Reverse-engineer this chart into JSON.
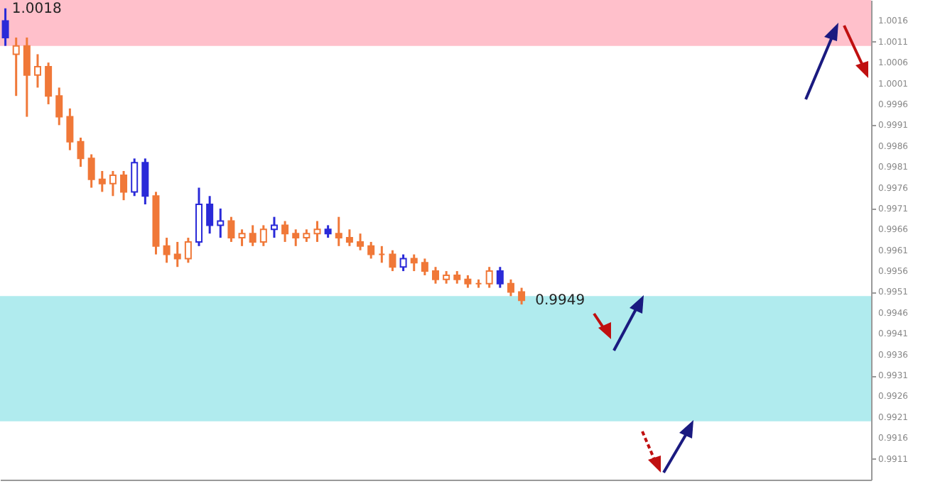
{
  "chart_data": {
    "type": "candlestick",
    "categories": [
      null,
      null,
      null,
      null,
      null,
      null,
      null,
      null,
      null,
      null,
      null,
      null,
      null,
      null,
      null,
      null,
      null,
      null,
      null,
      null,
      null,
      null,
      null,
      null,
      null,
      null,
      null,
      null,
      null,
      null,
      null,
      null,
      null,
      null,
      null,
      null,
      null,
      null,
      null,
      null,
      null,
      null,
      null,
      null,
      null,
      null,
      null,
      null,
      null,
      null,
      null,
      null,
      null,
      null,
      null,
      null,
      null,
      null,
      null,
      null,
      null,
      null,
      null,
      null,
      null,
      null,
      null,
      null,
      null,
      null,
      null,
      null,
      null,
      null,
      null,
      null,
      null,
      null,
      null,
      null,
      null
    ],
    "ohlc": [
      [
        1.0016,
        1.0019,
        1.001,
        1.0012
      ],
      [
        1.0008,
        1.0012,
        0.9998,
        1.001
      ],
      [
        1.001,
        1.0012,
        0.9993,
        1.0003
      ],
      [
        1.0003,
        1.0008,
        1.0,
        1.0005
      ],
      [
        1.0005,
        1.0006,
        0.9996,
        0.9998
      ],
      [
        0.9998,
        1.0,
        0.9991,
        0.9993
      ],
      [
        0.9993,
        0.9995,
        0.9985,
        0.9987
      ],
      [
        0.9987,
        0.9988,
        0.9981,
        0.9983
      ],
      [
        0.9983,
        0.9984,
        0.9976,
        0.9978
      ],
      [
        0.9978,
        0.998,
        0.9975,
        0.9977
      ],
      [
        0.9977,
        0.998,
        0.9974,
        0.9979
      ],
      [
        0.9979,
        0.998,
        0.9973,
        0.9975
      ],
      [
        0.9975,
        0.9983,
        0.9974,
        0.9982
      ],
      [
        0.9982,
        0.9983,
        0.9972,
        0.9974
      ],
      [
        0.9974,
        0.9975,
        0.996,
        0.9962
      ],
      [
        0.9962,
        0.9964,
        0.9958,
        0.996
      ],
      [
        0.996,
        0.9963,
        0.9957,
        0.9959
      ],
      [
        0.9959,
        0.9964,
        0.9958,
        0.9963
      ],
      [
        0.9963,
        0.9976,
        0.9962,
        0.9972
      ],
      [
        0.9972,
        0.9974,
        0.9965,
        0.9967
      ],
      [
        0.9967,
        0.9971,
        0.9964,
        0.9968
      ],
      [
        0.9968,
        0.9969,
        0.9963,
        0.9964
      ],
      [
        0.9964,
        0.9966,
        0.9962,
        0.9965
      ],
      [
        0.9965,
        0.9967,
        0.9962,
        0.9963
      ],
      [
        0.9963,
        0.9967,
        0.9962,
        0.9966
      ],
      [
        0.9966,
        0.9969,
        0.9964,
        0.9967
      ],
      [
        0.9967,
        0.9968,
        0.9963,
        0.9965
      ],
      [
        0.9965,
        0.9966,
        0.9962,
        0.9964
      ],
      [
        0.9964,
        0.9966,
        0.9963,
        0.9965
      ],
      [
        0.9965,
        0.9968,
        0.9963,
        0.9966
      ],
      [
        0.9966,
        0.9967,
        0.9964,
        0.9965
      ],
      [
        0.9965,
        0.9969,
        0.9962,
        0.9964
      ],
      [
        0.9964,
        0.9966,
        0.9962,
        0.9963
      ],
      [
        0.9963,
        0.9965,
        0.9961,
        0.9962
      ],
      [
        0.9962,
        0.9963,
        0.9959,
        0.996
      ],
      [
        0.996,
        0.9962,
        0.9958,
        0.996
      ],
      [
        0.996,
        0.9961,
        0.9956,
        0.9957
      ],
      [
        0.9957,
        0.996,
        0.9956,
        0.9959
      ],
      [
        0.9959,
        0.996,
        0.9956,
        0.9958
      ],
      [
        0.9958,
        0.9959,
        0.9955,
        0.9956
      ],
      [
        0.9956,
        0.9957,
        0.9953,
        0.9954
      ],
      [
        0.9954,
        0.9956,
        0.9953,
        0.9955
      ],
      [
        0.9955,
        0.9956,
        0.9953,
        0.9954
      ],
      [
        0.9954,
        0.9955,
        0.9952,
        0.9953
      ],
      [
        0.9953,
        0.9954,
        0.9952,
        0.9953
      ],
      [
        0.9953,
        0.9957,
        0.9952,
        0.9956
      ],
      [
        0.9956,
        0.9957,
        0.9952,
        0.9953
      ],
      [
        0.9953,
        0.9954,
        0.995,
        0.9951
      ],
      [
        0.9951,
        0.9952,
        0.9948,
        0.9949
      ],
      null,
      null,
      null,
      null,
      null,
      null,
      null,
      null,
      null,
      null,
      null,
      null,
      null,
      null,
      null,
      null,
      null,
      null,
      null,
      null,
      null,
      null,
      null,
      null,
      null,
      null,
      null,
      null,
      null,
      null,
      null,
      null
    ],
    "colors": [
      "#2a2ad8",
      "#f07838",
      "#f07838",
      "#f07838",
      "#f07838",
      "#f07838",
      "#f07838",
      "#f07838",
      "#f07838",
      "#f07838",
      "#f07838",
      "#f07838",
      "#2a2ad8",
      "#2a2ad8",
      "#f07838",
      "#f07838",
      "#f07838",
      "#f07838",
      "#2a2ad8",
      "#2a2ad8",
      "#2a2ad8",
      "#f07838",
      "#f07838",
      "#f07838",
      "#f07838",
      "#2a2ad8",
      "#f07838",
      "#f07838",
      "#f07838",
      "#f07838",
      "#2a2ad8",
      "#f07838",
      "#f07838",
      "#f07838",
      "#f07838",
      "#f07838",
      "#f07838",
      "#2a2ad8",
      "#f07838",
      "#f07838",
      "#f07838",
      "#f07838",
      "#f07838",
      "#f07838",
      "#f07838",
      "#f07838",
      "#2a2ad8",
      "#f07838",
      "#f07838",
      null,
      null,
      null,
      null,
      null,
      null,
      null,
      null,
      null,
      null,
      null,
      null,
      null,
      null,
      null,
      null,
      null,
      null,
      null,
      null,
      null,
      null,
      null,
      null,
      null,
      null,
      null,
      null,
      null,
      null,
      null,
      null
    ],
    "ylim": [
      0.9906,
      1.0021
    ],
    "yticks": [
      0.9911,
      0.9916,
      0.9921,
      0.9926,
      0.9931,
      0.9936,
      0.9941,
      0.9946,
      0.9951,
      0.9956,
      0.9961,
      0.9966,
      0.9971,
      0.9976,
      0.9981,
      0.9986,
      0.9991,
      0.9996,
      1.0001,
      1.0006,
      1.0011,
      1.0016
    ],
    "bands": [
      {
        "axis": "y",
        "from": 1.001,
        "to": 1.0021,
        "color": "#ffc0cb"
      },
      {
        "axis": "y",
        "from": 0.992,
        "to": 0.995,
        "color": "#b0ebee"
      }
    ],
    "annotations": [
      "1.0018",
      {
        "text": "0.9949",
        "y": 0.9949
      }
    ],
    "tick_labels": "y",
    "grid": false
  }
}
